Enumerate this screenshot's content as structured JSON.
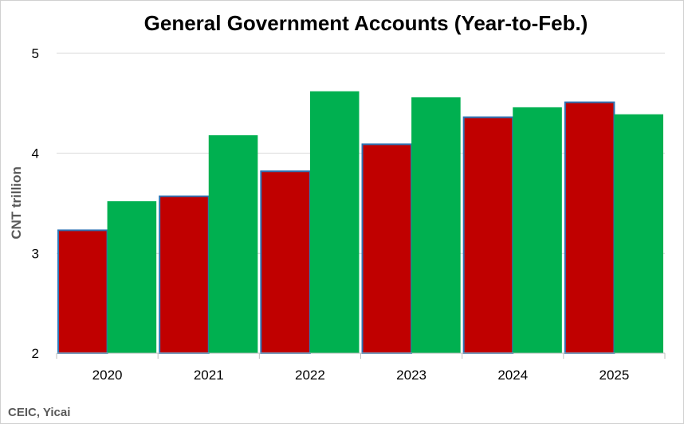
{
  "chart_data": {
    "type": "bar",
    "title": "General Government Accounts (Year-to-Feb.)",
    "xlabel": "",
    "ylabel": "CNT trillion",
    "categories": [
      "2020",
      "2021",
      "2022",
      "2023",
      "2024",
      "2025"
    ],
    "series": [
      {
        "values": [
          3.23,
          3.57,
          3.82,
          4.09,
          4.36,
          4.51
        ]
      },
      {
        "values": [
          3.52,
          4.18,
          4.62,
          4.56,
          4.46,
          4.39
        ]
      }
    ],
    "ylim": [
      2,
      5
    ],
    "yticks": [
      2,
      3,
      4,
      5
    ],
    "ytick_labels": [
      "2",
      "3",
      "4",
      "5"
    ],
    "grid": true,
    "legend": "none",
    "colors": {
      "series_0": "#c00000",
      "series_1": "#00b050",
      "series_0_outline": "#2e75b6",
      "grid": "#d9d9d9",
      "axis": "#bfbfbf"
    },
    "source": "CEIC, Yicai"
  }
}
